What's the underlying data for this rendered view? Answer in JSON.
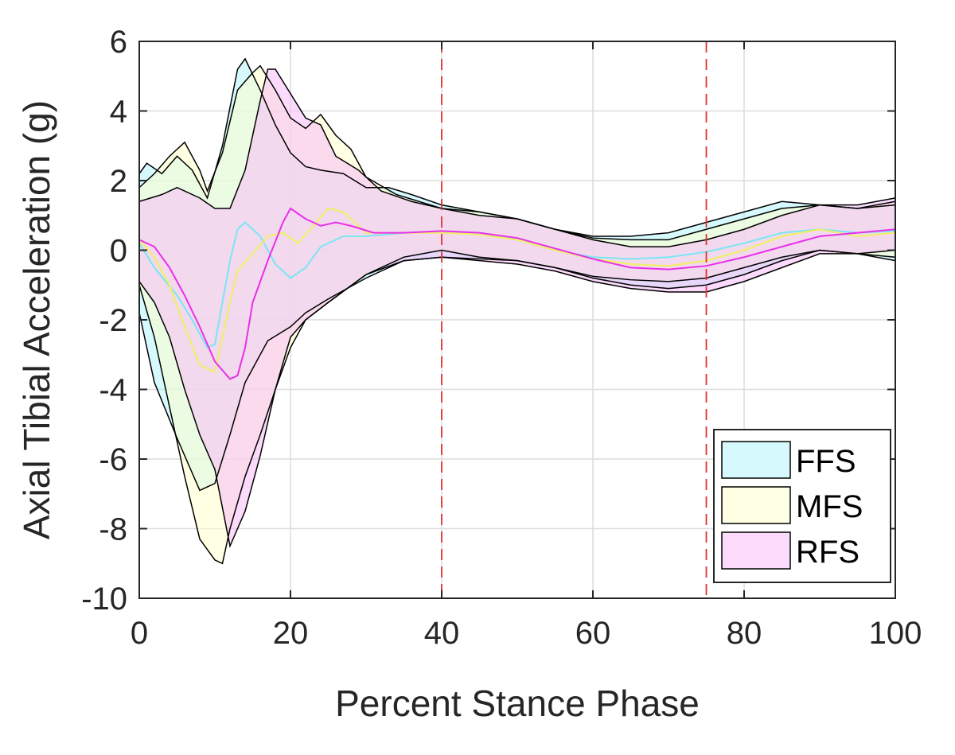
{
  "chart_data": {
    "type": "area",
    "title": "",
    "xlabel": "Percent Stance Phase",
    "ylabel": "Axial Tibial Acceleration (g)",
    "xlim": [
      0,
      100
    ],
    "ylim": [
      -10,
      6
    ],
    "xticks": [
      0,
      20,
      40,
      60,
      80,
      100
    ],
    "yticks": [
      -10,
      -8,
      -6,
      -4,
      -2,
      0,
      2,
      4,
      6
    ],
    "grid": true,
    "legend_position": "bottom-right",
    "vertical_reference_lines": [
      {
        "x": 40,
        "color": "#e03030",
        "style": "dashed"
      },
      {
        "x": 75,
        "color": "#e03030",
        "style": "dashed"
      }
    ],
    "series": [
      {
        "name": "FFS",
        "fill_color": "#b3f4fb",
        "mean_color": "#7ae6f2",
        "upper": [
          [
            0,
            2.2
          ],
          [
            1,
            2.5
          ],
          [
            3,
            2.2
          ],
          [
            5,
            2.7
          ],
          [
            7,
            2.3
          ],
          [
            9,
            1.5
          ],
          [
            11,
            3.0
          ],
          [
            13,
            5.2
          ],
          [
            14,
            5.5
          ],
          [
            16,
            4.6
          ],
          [
            18,
            3.6
          ],
          [
            20,
            2.8
          ],
          [
            22,
            2.4
          ],
          [
            24,
            2.3
          ],
          [
            27,
            2.2
          ],
          [
            30,
            1.8
          ],
          [
            33,
            1.8
          ],
          [
            36,
            1.6
          ],
          [
            40,
            1.3
          ],
          [
            45,
            1.1
          ],
          [
            50,
            0.9
          ],
          [
            55,
            0.6
          ],
          [
            60,
            0.4
          ],
          [
            65,
            0.4
          ],
          [
            70,
            0.5
          ],
          [
            75,
            0.8
          ],
          [
            80,
            1.1
          ],
          [
            85,
            1.4
          ],
          [
            90,
            1.3
          ],
          [
            95,
            1.2
          ],
          [
            100,
            1.3
          ]
        ],
        "mean": [
          [
            0,
            0.2
          ],
          [
            2,
            -0.5
          ],
          [
            5,
            -1.3
          ],
          [
            7,
            -2.0
          ],
          [
            9,
            -2.8
          ],
          [
            10,
            -2.7
          ],
          [
            11,
            -1.5
          ],
          [
            12,
            -0.3
          ],
          [
            13,
            0.6
          ],
          [
            14,
            0.8
          ],
          [
            16,
            0.4
          ],
          [
            18,
            -0.4
          ],
          [
            20,
            -0.8
          ],
          [
            22,
            -0.5
          ],
          [
            24,
            0.1
          ],
          [
            27,
            0.4
          ],
          [
            30,
            0.4
          ],
          [
            35,
            0.5
          ],
          [
            40,
            0.55
          ],
          [
            45,
            0.5
          ],
          [
            50,
            0.3
          ],
          [
            55,
            0.0
          ],
          [
            60,
            -0.2
          ],
          [
            65,
            -0.25
          ],
          [
            70,
            -0.2
          ],
          [
            75,
            -0.05
          ],
          [
            80,
            0.2
          ],
          [
            85,
            0.5
          ],
          [
            90,
            0.6
          ],
          [
            95,
            0.5
          ],
          [
            100,
            0.55
          ]
        ],
        "lower": [
          [
            0,
            -1.8
          ],
          [
            2,
            -3.8
          ],
          [
            5,
            -5.4
          ],
          [
            8,
            -6.9
          ],
          [
            10,
            -6.7
          ],
          [
            12,
            -5.3
          ],
          [
            14,
            -3.8
          ],
          [
            17,
            -2.6
          ],
          [
            20,
            -2.2
          ],
          [
            22,
            -1.8
          ],
          [
            25,
            -1.4
          ],
          [
            30,
            -0.8
          ],
          [
            35,
            -0.3
          ],
          [
            40,
            -0.2
          ],
          [
            45,
            -0.25
          ],
          [
            50,
            -0.3
          ],
          [
            55,
            -0.5
          ],
          [
            60,
            -0.8
          ],
          [
            65,
            -1.0
          ],
          [
            70,
            -1.1
          ],
          [
            75,
            -1.0
          ],
          [
            80,
            -0.7
          ],
          [
            85,
            -0.3
          ],
          [
            90,
            0.0
          ],
          [
            95,
            -0.1
          ],
          [
            100,
            -0.3
          ]
        ]
      },
      {
        "name": "MFS",
        "fill_color": "#ffffcc",
        "mean_color": "#f0f060",
        "upper": [
          [
            0,
            1.8
          ],
          [
            2,
            2.2
          ],
          [
            4,
            2.7
          ],
          [
            6,
            3.1
          ],
          [
            8,
            2.3
          ],
          [
            9,
            1.7
          ],
          [
            11,
            2.8
          ],
          [
            13,
            4.6
          ],
          [
            15,
            5.1
          ],
          [
            16,
            5.3
          ],
          [
            18,
            4.6
          ],
          [
            20,
            3.8
          ],
          [
            22,
            3.5
          ],
          [
            24,
            3.9
          ],
          [
            26,
            3.3
          ],
          [
            28,
            2.9
          ],
          [
            30,
            2.1
          ],
          [
            34,
            1.6
          ],
          [
            40,
            1.2
          ],
          [
            45,
            1.1
          ],
          [
            50,
            0.9
          ],
          [
            55,
            0.6
          ],
          [
            60,
            0.35
          ],
          [
            65,
            0.3
          ],
          [
            70,
            0.3
          ],
          [
            75,
            0.6
          ],
          [
            80,
            0.9
          ],
          [
            85,
            1.2
          ],
          [
            90,
            1.3
          ],
          [
            95,
            1.2
          ],
          [
            100,
            1.4
          ]
        ],
        "mean": [
          [
            0,
            0.3
          ],
          [
            2,
            -0.2
          ],
          [
            4,
            -1.0
          ],
          [
            6,
            -2.2
          ],
          [
            8,
            -3.3
          ],
          [
            10,
            -3.5
          ],
          [
            11,
            -2.5
          ],
          [
            12,
            -1.5
          ],
          [
            13,
            -0.6
          ],
          [
            15,
            -0.1
          ],
          [
            17,
            0.4
          ],
          [
            19,
            0.5
          ],
          [
            21,
            0.2
          ],
          [
            23,
            0.7
          ],
          [
            25,
            1.2
          ],
          [
            27,
            1.1
          ],
          [
            30,
            0.5
          ],
          [
            35,
            0.5
          ],
          [
            40,
            0.5
          ],
          [
            45,
            0.45
          ],
          [
            50,
            0.3
          ],
          [
            55,
            0.0
          ],
          [
            60,
            -0.25
          ],
          [
            65,
            -0.4
          ],
          [
            70,
            -0.45
          ],
          [
            75,
            -0.3
          ],
          [
            80,
            0.0
          ],
          [
            85,
            0.4
          ],
          [
            90,
            0.6
          ],
          [
            95,
            0.4
          ],
          [
            100,
            0.5
          ]
        ],
        "lower": [
          [
            0,
            -1.0
          ],
          [
            2,
            -2.5
          ],
          [
            4,
            -4.5
          ],
          [
            6,
            -6.5
          ],
          [
            8,
            -8.3
          ],
          [
            10,
            -8.9
          ],
          [
            11,
            -9.0
          ],
          [
            12,
            -8.0
          ],
          [
            14,
            -6.5
          ],
          [
            16,
            -5.3
          ],
          [
            18,
            -4.0
          ],
          [
            20,
            -2.8
          ],
          [
            22,
            -2.0
          ],
          [
            25,
            -1.5
          ],
          [
            30,
            -0.7
          ],
          [
            35,
            -0.2
          ],
          [
            40,
            0.0
          ],
          [
            45,
            -0.2
          ],
          [
            50,
            -0.3
          ],
          [
            55,
            -0.5
          ],
          [
            60,
            -0.75
          ],
          [
            65,
            -0.85
          ],
          [
            70,
            -0.9
          ],
          [
            75,
            -0.8
          ],
          [
            80,
            -0.5
          ],
          [
            85,
            -0.2
          ],
          [
            90,
            0.0
          ],
          [
            95,
            -0.1
          ],
          [
            100,
            -0.2
          ]
        ]
      },
      {
        "name": "RFS",
        "fill_color": "#f8bcf8",
        "mean_color": "#e830e8",
        "upper": [
          [
            0,
            1.4
          ],
          [
            3,
            1.6
          ],
          [
            5,
            1.8
          ],
          [
            8,
            1.5
          ],
          [
            10,
            1.2
          ],
          [
            12,
            1.2
          ],
          [
            14,
            2.3
          ],
          [
            16,
            4.3
          ],
          [
            17,
            5.2
          ],
          [
            18,
            5.2
          ],
          [
            20,
            4.5
          ],
          [
            22,
            3.8
          ],
          [
            24,
            3.6
          ],
          [
            26,
            2.7
          ],
          [
            29,
            2.3
          ],
          [
            32,
            1.7
          ],
          [
            36,
            1.4
          ],
          [
            40,
            1.2
          ],
          [
            45,
            1.0
          ],
          [
            50,
            0.9
          ],
          [
            55,
            0.6
          ],
          [
            60,
            0.3
          ],
          [
            65,
            0.1
          ],
          [
            70,
            0.1
          ],
          [
            75,
            0.3
          ],
          [
            80,
            0.6
          ],
          [
            85,
            1.0
          ],
          [
            90,
            1.3
          ],
          [
            95,
            1.3
          ],
          [
            100,
            1.5
          ]
        ],
        "mean": [
          [
            0,
            0.3
          ],
          [
            2,
            0.1
          ],
          [
            4,
            -0.5
          ],
          [
            6,
            -1.3
          ],
          [
            8,
            -2.2
          ],
          [
            10,
            -3.2
          ],
          [
            12,
            -3.7
          ],
          [
            13,
            -3.6
          ],
          [
            14,
            -2.8
          ],
          [
            15,
            -1.5
          ],
          [
            17,
            -0.3
          ],
          [
            19,
            0.8
          ],
          [
            20,
            1.2
          ],
          [
            22,
            0.9
          ],
          [
            24,
            0.7
          ],
          [
            26,
            0.8
          ],
          [
            28,
            0.7
          ],
          [
            31,
            0.5
          ],
          [
            35,
            0.5
          ],
          [
            40,
            0.55
          ],
          [
            45,
            0.5
          ],
          [
            50,
            0.35
          ],
          [
            55,
            0.05
          ],
          [
            60,
            -0.25
          ],
          [
            65,
            -0.5
          ],
          [
            70,
            -0.55
          ],
          [
            75,
            -0.45
          ],
          [
            80,
            -0.2
          ],
          [
            85,
            0.1
          ],
          [
            90,
            0.4
          ],
          [
            95,
            0.5
          ],
          [
            100,
            0.6
          ]
        ],
        "lower": [
          [
            0,
            -0.9
          ],
          [
            2,
            -1.5
          ],
          [
            4,
            -2.5
          ],
          [
            6,
            -4.0
          ],
          [
            8,
            -5.3
          ],
          [
            10,
            -6.3
          ],
          [
            11,
            -7.4
          ],
          [
            12,
            -8.5
          ],
          [
            14,
            -7.5
          ],
          [
            16,
            -5.9
          ],
          [
            18,
            -4.0
          ],
          [
            20,
            -2.5
          ],
          [
            22,
            -2.0
          ],
          [
            25,
            -1.5
          ],
          [
            30,
            -0.7
          ],
          [
            35,
            -0.3
          ],
          [
            40,
            -0.2
          ],
          [
            45,
            -0.3
          ],
          [
            50,
            -0.4
          ],
          [
            55,
            -0.6
          ],
          [
            60,
            -0.9
          ],
          [
            65,
            -1.1
          ],
          [
            70,
            -1.2
          ],
          [
            75,
            -1.2
          ],
          [
            80,
            -0.9
          ],
          [
            85,
            -0.5
          ],
          [
            90,
            -0.1
          ],
          [
            95,
            -0.1
          ],
          [
            100,
            0.0
          ]
        ]
      }
    ]
  }
}
